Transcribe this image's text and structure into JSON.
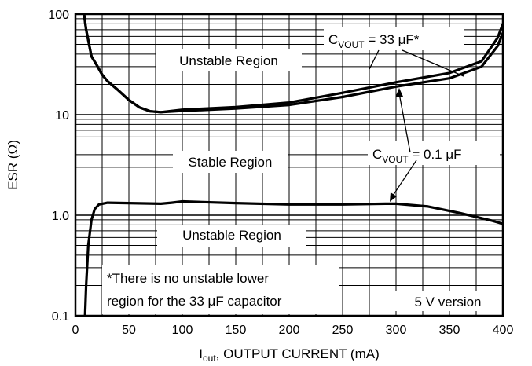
{
  "chart_data": {
    "type": "line",
    "xlabel": {
      "prefix": "I",
      "sub": "out",
      "rest": ", OUTPUT CURRENT (mA)"
    },
    "ylabel": "ESR (Ω)",
    "xlim": [
      0,
      400
    ],
    "ylim": [
      0.1,
      100
    ],
    "yscale": "log",
    "grid": true,
    "x_ticks": [
      "0",
      "50",
      "100",
      "150",
      "200",
      "250",
      "300",
      "350",
      "400"
    ],
    "y_ticks": [
      "0.1",
      "1.0",
      "10",
      "100"
    ],
    "regions": [
      "Unstable Region",
      "Stable Region",
      "Unstable Region"
    ],
    "series": [
      {
        "label_prefix": "C",
        "label_sub": "VOUT",
        "label_rest": " = 33 μF*",
        "upper": [
          [
            8,
            100
          ],
          [
            10,
            70
          ],
          [
            15,
            38
          ],
          [
            20,
            31
          ],
          [
            25,
            25
          ],
          [
            30,
            21.5
          ],
          [
            40,
            17.5
          ],
          [
            50,
            14
          ],
          [
            60,
            11.8
          ],
          [
            70,
            10.8
          ],
          [
            80,
            10.6
          ],
          [
            100,
            11.2
          ],
          [
            150,
            11.9
          ],
          [
            200,
            13.2
          ],
          [
            250,
            16.5
          ],
          [
            300,
            21
          ],
          [
            350,
            26
          ],
          [
            380,
            34
          ],
          [
            395,
            58
          ],
          [
            400,
            80
          ]
        ],
        "lower": [
          [
            8,
            100
          ],
          [
            10,
            70
          ],
          [
            15,
            38
          ],
          [
            20,
            31
          ],
          [
            25,
            25
          ],
          [
            30,
            21.5
          ],
          [
            40,
            17.5
          ],
          [
            50,
            14
          ],
          [
            60,
            11.8
          ],
          [
            70,
            10.8
          ],
          [
            80,
            10.6
          ],
          [
            100,
            10.9
          ],
          [
            150,
            11.5
          ],
          [
            200,
            12.5
          ],
          [
            250,
            15
          ],
          [
            300,
            19
          ],
          [
            350,
            23
          ],
          [
            380,
            30
          ],
          [
            395,
            48
          ],
          [
            400,
            65
          ]
        ]
      },
      {
        "label_prefix": "C",
        "label_sub": "VOUT",
        "label_rest": " = 0.1 μF",
        "points": [
          [
            9,
            0.1
          ],
          [
            10,
            0.2
          ],
          [
            12,
            0.5
          ],
          [
            15,
            0.9
          ],
          [
            18,
            1.15
          ],
          [
            22,
            1.28
          ],
          [
            30,
            1.33
          ],
          [
            50,
            1.32
          ],
          [
            80,
            1.3
          ],
          [
            90,
            1.33
          ],
          [
            100,
            1.37
          ],
          [
            150,
            1.32
          ],
          [
            200,
            1.28
          ],
          [
            250,
            1.28
          ],
          [
            290,
            1.3
          ],
          [
            300,
            1.3
          ],
          [
            330,
            1.22
          ],
          [
            360,
            1.05
          ],
          [
            390,
            0.88
          ],
          [
            400,
            0.82
          ]
        ]
      }
    ],
    "note_lines": [
      "*There is no unstable lower",
      "region for the 33 μF capacitor"
    ],
    "version_label": "5 V version"
  }
}
